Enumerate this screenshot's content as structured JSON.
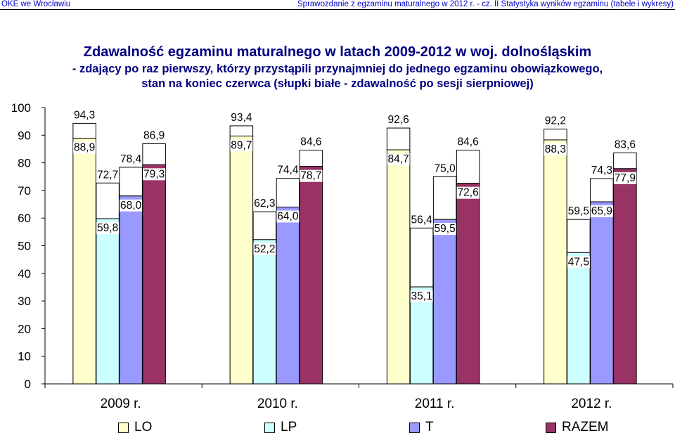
{
  "header": {
    "left": "OKE we Wrocławiu",
    "right": "Sprawozdanie z egzaminu maturalnego w 2012 r. - cz. II Statystyka wyników egzaminu (tabele i wykresy)"
  },
  "title": {
    "line1": "Zdawalność egzaminu maturalnego w latach 2009-2012 w woj. dolnośląskim",
    "line2": "- zdający po raz pierwszy, którzy przystąpili przynajmniej do jednego egzaminu obowiązkowego,",
    "line3": "stan na koniec czerwca (słupki białe - zdawalność po sesji sierpniowej)"
  },
  "colors": {
    "LO": "#FFFFCC",
    "LP": "#CCFFFF",
    "T": "#9999FF",
    "RAZEM": "#993366",
    "august": "#FFFFFF"
  },
  "chart_data": {
    "type": "bar",
    "categories": [
      "2009 r.",
      "2010 r.",
      "2011 r.",
      "2012 r."
    ],
    "ylim": [
      0,
      100
    ],
    "yticks": [
      0,
      10,
      20,
      30,
      40,
      50,
      60,
      70,
      80,
      90,
      100
    ],
    "series": [
      {
        "name": "LO",
        "values": [
          88.9,
          89.7,
          84.7,
          88.3
        ],
        "labels": [
          "88,9",
          "89,7",
          "84,7",
          "88,3"
        ]
      },
      {
        "name": "LP",
        "values": [
          59.8,
          52.2,
          35.1,
          47.5
        ],
        "labels": [
          "59,8",
          "52,2",
          "35,1",
          "47,5"
        ]
      },
      {
        "name": "T",
        "values": [
          68.0,
          64.0,
          59.5,
          65.9
        ],
        "labels": [
          "68,0",
          "64,0",
          "59,5",
          "65,9"
        ]
      },
      {
        "name": "RAZEM",
        "values": [
          79.3,
          78.7,
          72.6,
          77.9
        ],
        "labels": [
          "79,3",
          "78,7",
          "72,6",
          "77,9"
        ]
      }
    ],
    "august_values": {
      "LO": [
        94.3,
        93.4,
        92.6,
        92.2
      ],
      "LP": [
        72.7,
        62.3,
        56.4,
        59.5
      ],
      "T": [
        78.4,
        74.4,
        75.0,
        74.3
      ],
      "RAZEM": [
        86.9,
        84.6,
        84.6,
        83.6
      ]
    },
    "august_labels": {
      "LO": [
        "94,3",
        "93,4",
        "92,6",
        "92,2"
      ],
      "LP": [
        "72,7",
        "62,3",
        "56,4",
        "59,5"
      ],
      "T": [
        "78,4",
        "74,4",
        "75,0",
        "74,3"
      ],
      "RAZEM": [
        "86,9",
        "84,6",
        "84,6",
        "83,6"
      ]
    },
    "legend": [
      "LO",
      "LP",
      "T",
      "RAZEM"
    ],
    "legend_position": "bottom",
    "grid": false
  }
}
